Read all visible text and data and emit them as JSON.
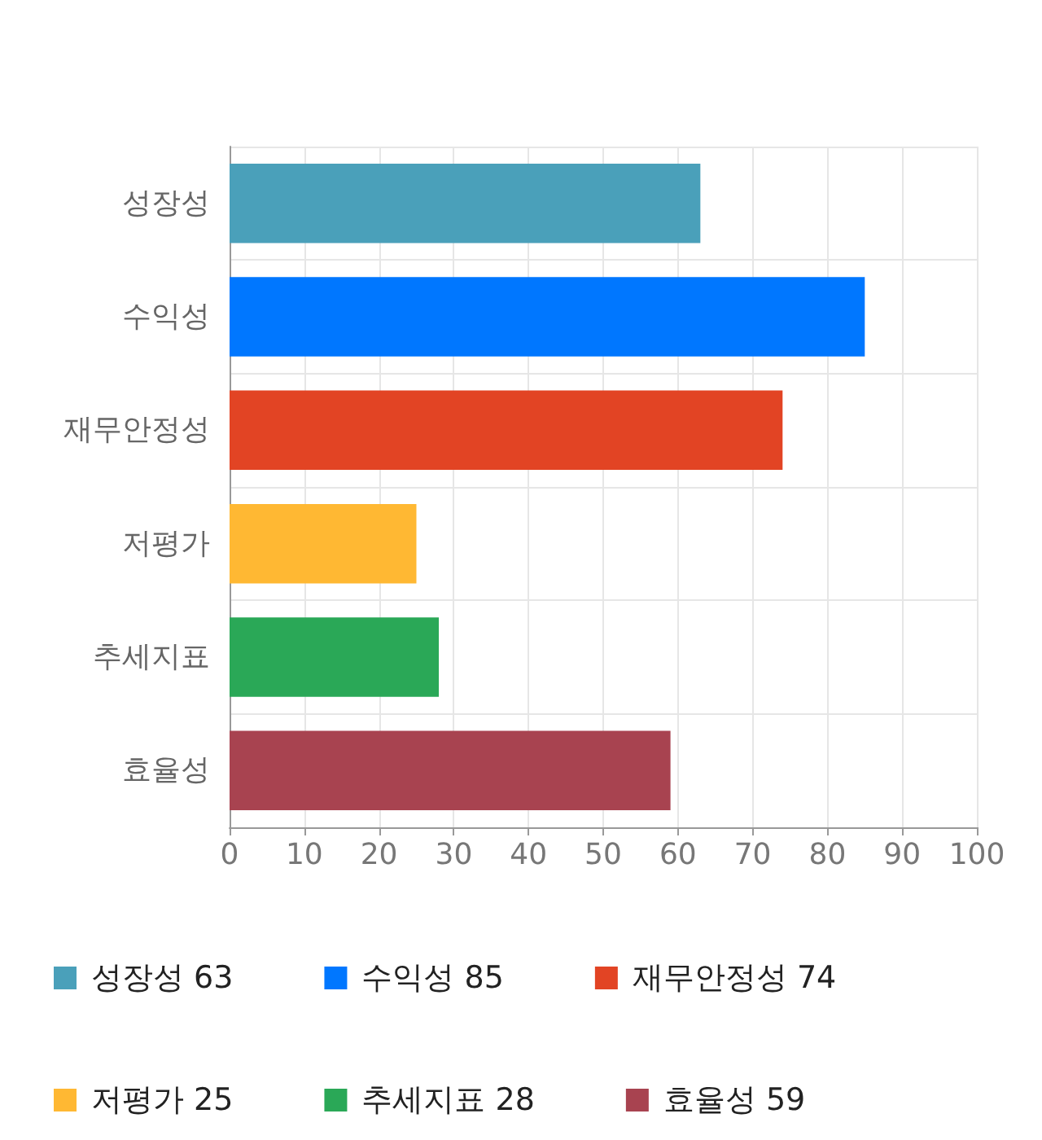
{
  "chart_data": {
    "type": "bar",
    "orientation": "horizontal",
    "stacked": true,
    "categories": [
      "성장성",
      "수익성",
      "재무안정성",
      "저평가",
      "추세지표",
      "효율성"
    ],
    "series": [
      {
        "name": "성장성 63",
        "color": "#4aa0ba",
        "values": [
          63,
          null,
          null,
          null,
          null,
          null
        ]
      },
      {
        "name": "수익성 85",
        "color": "#0077ff",
        "values": [
          null,
          85,
          null,
          null,
          null,
          null
        ]
      },
      {
        "name": "재무안정성 74",
        "color": "#e24424",
        "values": [
          null,
          null,
          74,
          null,
          null,
          null
        ]
      },
      {
        "name": "저평가 25",
        "color": "#ffb833",
        "values": [
          null,
          null,
          null,
          25,
          null,
          null
        ]
      },
      {
        "name": "추세지표 28",
        "color": "#2aa857",
        "values": [
          null,
          null,
          null,
          null,
          28,
          null
        ]
      },
      {
        "name": "효율성 59",
        "color": "#a84350",
        "values": [
          null,
          null,
          null,
          null,
          null,
          59
        ]
      }
    ],
    "xlim": [
      0,
      100
    ],
    "xticks": [
      0,
      10,
      20,
      30,
      40,
      50,
      60,
      70,
      80,
      90,
      100
    ],
    "grid": true,
    "legend": "bottom"
  }
}
